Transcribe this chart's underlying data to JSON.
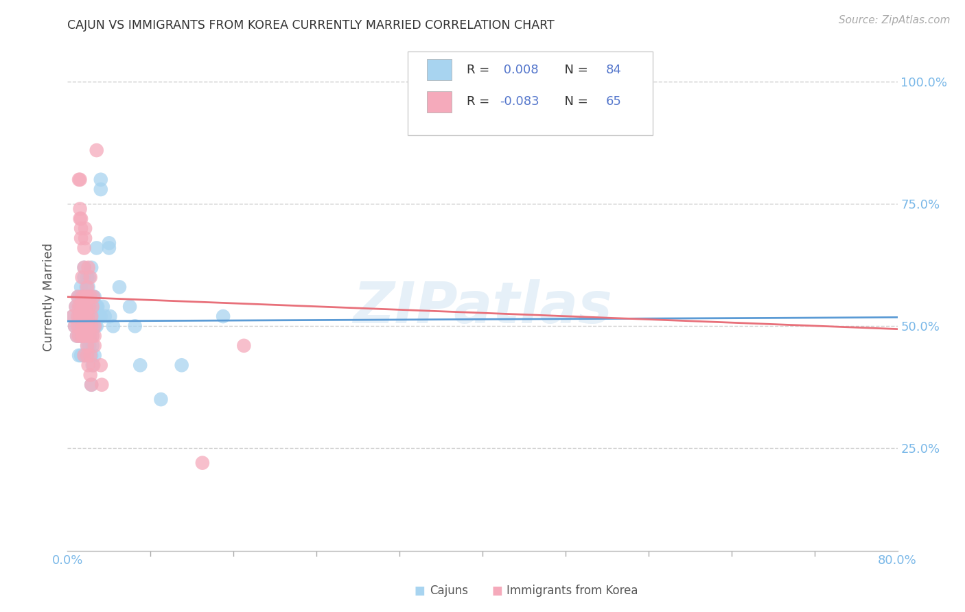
{
  "title": "CAJUN VS IMMIGRANTS FROM KOREA CURRENTLY MARRIED CORRELATION CHART",
  "source": "Source: ZipAtlas.com",
  "ylabel": "Currently Married",
  "ytick_values": [
    0.25,
    0.5,
    0.75,
    1.0
  ],
  "xlim": [
    0.0,
    0.8
  ],
  "ylim": [
    0.04,
    1.08
  ],
  "color_cajun": "#a8d4f0",
  "color_korea": "#f5aabb",
  "color_cajun_line": "#5b9bd5",
  "color_korea_line": "#e8707a",
  "color_right_ticks": "#7ab8e8",
  "watermark": "ZIPatlas",
  "cajun_scatter": [
    [
      0.005,
      0.52
    ],
    [
      0.007,
      0.5
    ],
    [
      0.008,
      0.54
    ],
    [
      0.009,
      0.48
    ],
    [
      0.01,
      0.56
    ],
    [
      0.01,
      0.5
    ],
    [
      0.01,
      0.52
    ],
    [
      0.011,
      0.54
    ],
    [
      0.011,
      0.48
    ],
    [
      0.011,
      0.44
    ],
    [
      0.012,
      0.52
    ],
    [
      0.012,
      0.5
    ],
    [
      0.012,
      0.56
    ],
    [
      0.013,
      0.54
    ],
    [
      0.013,
      0.48
    ],
    [
      0.013,
      0.58
    ],
    [
      0.013,
      0.44
    ],
    [
      0.014,
      0.52
    ],
    [
      0.014,
      0.5
    ],
    [
      0.014,
      0.56
    ],
    [
      0.015,
      0.52
    ],
    [
      0.015,
      0.54
    ],
    [
      0.015,
      0.5
    ],
    [
      0.015,
      0.48
    ],
    [
      0.016,
      0.56
    ],
    [
      0.016,
      0.44
    ],
    [
      0.016,
      0.6
    ],
    [
      0.016,
      0.62
    ],
    [
      0.017,
      0.52
    ],
    [
      0.017,
      0.5
    ],
    [
      0.018,
      0.54
    ],
    [
      0.018,
      0.48
    ],
    [
      0.018,
      0.56
    ],
    [
      0.018,
      0.44
    ],
    [
      0.018,
      0.58
    ],
    [
      0.019,
      0.52
    ],
    [
      0.019,
      0.5
    ],
    [
      0.019,
      0.46
    ],
    [
      0.019,
      0.6
    ],
    [
      0.02,
      0.52
    ],
    [
      0.02,
      0.54
    ],
    [
      0.02,
      0.48
    ],
    [
      0.02,
      0.56
    ],
    [
      0.02,
      0.44
    ],
    [
      0.02,
      0.58
    ],
    [
      0.021,
      0.52
    ],
    [
      0.021,
      0.5
    ],
    [
      0.021,
      0.46
    ],
    [
      0.021,
      0.6
    ],
    [
      0.022,
      0.52
    ],
    [
      0.022,
      0.54
    ],
    [
      0.022,
      0.48
    ],
    [
      0.022,
      0.56
    ],
    [
      0.023,
      0.44
    ],
    [
      0.023,
      0.38
    ],
    [
      0.023,
      0.52
    ],
    [
      0.023,
      0.62
    ],
    [
      0.024,
      0.52
    ],
    [
      0.024,
      0.54
    ],
    [
      0.024,
      0.48
    ],
    [
      0.024,
      0.46
    ],
    [
      0.024,
      0.42
    ],
    [
      0.025,
      0.56
    ],
    [
      0.025,
      0.52
    ],
    [
      0.025,
      0.5
    ],
    [
      0.026,
      0.56
    ],
    [
      0.026,
      0.44
    ],
    [
      0.027,
      0.52
    ],
    [
      0.027,
      0.5
    ],
    [
      0.028,
      0.54
    ],
    [
      0.028,
      0.66
    ],
    [
      0.028,
      0.52
    ],
    [
      0.028,
      0.5
    ],
    [
      0.029,
      0.54
    ],
    [
      0.03,
      0.52
    ],
    [
      0.032,
      0.78
    ],
    [
      0.032,
      0.8
    ],
    [
      0.032,
      0.52
    ],
    [
      0.034,
      0.54
    ],
    [
      0.036,
      0.52
    ],
    [
      0.04,
      0.67
    ],
    [
      0.04,
      0.66
    ],
    [
      0.041,
      0.52
    ],
    [
      0.044,
      0.5
    ],
    [
      0.05,
      0.58
    ],
    [
      0.06,
      0.54
    ],
    [
      0.065,
      0.5
    ],
    [
      0.07,
      0.42
    ],
    [
      0.09,
      0.35
    ],
    [
      0.11,
      0.42
    ],
    [
      0.15,
      0.52
    ]
  ],
  "korea_scatter": [
    [
      0.005,
      0.52
    ],
    [
      0.007,
      0.5
    ],
    [
      0.008,
      0.54
    ],
    [
      0.009,
      0.48
    ],
    [
      0.01,
      0.56
    ],
    [
      0.01,
      0.5
    ],
    [
      0.01,
      0.52
    ],
    [
      0.011,
      0.54
    ],
    [
      0.011,
      0.48
    ],
    [
      0.011,
      0.8
    ],
    [
      0.012,
      0.52
    ],
    [
      0.012,
      0.74
    ],
    [
      0.012,
      0.72
    ],
    [
      0.012,
      0.8
    ],
    [
      0.013,
      0.52
    ],
    [
      0.013,
      0.54
    ],
    [
      0.013,
      0.72
    ],
    [
      0.013,
      0.7
    ],
    [
      0.013,
      0.68
    ],
    [
      0.014,
      0.56
    ],
    [
      0.014,
      0.48
    ],
    [
      0.014,
      0.6
    ],
    [
      0.015,
      0.52
    ],
    [
      0.015,
      0.54
    ],
    [
      0.015,
      0.5
    ],
    [
      0.015,
      0.48
    ],
    [
      0.016,
      0.56
    ],
    [
      0.016,
      0.44
    ],
    [
      0.016,
      0.62
    ],
    [
      0.016,
      0.66
    ],
    [
      0.017,
      0.7
    ],
    [
      0.017,
      0.68
    ],
    [
      0.018,
      0.52
    ],
    [
      0.018,
      0.54
    ],
    [
      0.018,
      0.48
    ],
    [
      0.018,
      0.5
    ],
    [
      0.019,
      0.56
    ],
    [
      0.019,
      0.44
    ],
    [
      0.019,
      0.46
    ],
    [
      0.019,
      0.58
    ],
    [
      0.02,
      0.62
    ],
    [
      0.02,
      0.42
    ],
    [
      0.02,
      0.52
    ],
    [
      0.02,
      0.5
    ],
    [
      0.021,
      0.54
    ],
    [
      0.021,
      0.48
    ],
    [
      0.022,
      0.56
    ],
    [
      0.022,
      0.44
    ],
    [
      0.022,
      0.6
    ],
    [
      0.022,
      0.4
    ],
    [
      0.023,
      0.38
    ],
    [
      0.023,
      0.52
    ],
    [
      0.023,
      0.5
    ],
    [
      0.024,
      0.54
    ],
    [
      0.024,
      0.48
    ],
    [
      0.025,
      0.56
    ],
    [
      0.025,
      0.42
    ],
    [
      0.026,
      0.5
    ],
    [
      0.026,
      0.48
    ],
    [
      0.026,
      0.46
    ],
    [
      0.028,
      0.86
    ],
    [
      0.032,
      0.42
    ],
    [
      0.033,
      0.38
    ],
    [
      0.17,
      0.46
    ],
    [
      0.13,
      0.22
    ]
  ],
  "cajun_line_x": [
    0.0,
    0.8
  ],
  "cajun_line_y": [
    0.51,
    0.518
  ],
  "korea_line_x": [
    0.0,
    0.8
  ],
  "korea_line_y": [
    0.56,
    0.494
  ]
}
